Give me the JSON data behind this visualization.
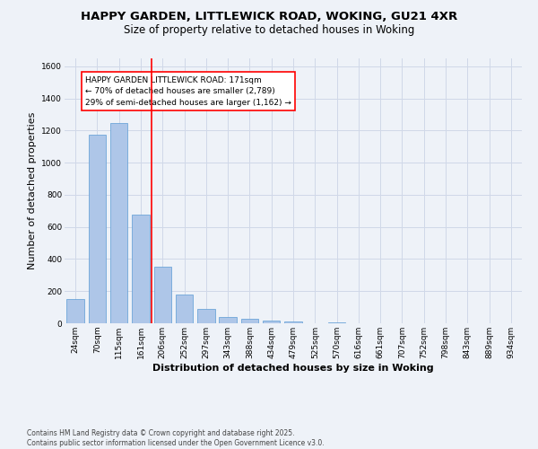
{
  "title_line1": "HAPPY GARDEN, LITTLEWICK ROAD, WOKING, GU21 4XR",
  "title_line2": "Size of property relative to detached houses in Woking",
  "xlabel": "Distribution of detached houses by size in Woking",
  "ylabel": "Number of detached properties",
  "categories": [
    "24sqm",
    "70sqm",
    "115sqm",
    "161sqm",
    "206sqm",
    "252sqm",
    "297sqm",
    "343sqm",
    "388sqm",
    "434sqm",
    "479sqm",
    "525sqm",
    "570sqm",
    "616sqm",
    "661sqm",
    "707sqm",
    "752sqm",
    "798sqm",
    "843sqm",
    "889sqm",
    "934sqm"
  ],
  "values": [
    152,
    1175,
    1250,
    675,
    350,
    180,
    90,
    40,
    30,
    15,
    12,
    0,
    8,
    0,
    0,
    0,
    0,
    0,
    0,
    0,
    0
  ],
  "bar_color": "#aec6e8",
  "bar_edgecolor": "#5b9bd5",
  "red_line_x": 3.5,
  "annotation_text": "HAPPY GARDEN LITTLEWICK ROAD: 171sqm\n← 70% of detached houses are smaller (2,789)\n29% of semi-detached houses are larger (1,162) →",
  "annotation_box_color": "white",
  "annotation_edge_color": "red",
  "ylim": [
    0,
    1650
  ],
  "yticks": [
    0,
    200,
    400,
    600,
    800,
    1000,
    1200,
    1400,
    1600
  ],
  "grid_color": "#d0d8e8",
  "background_color": "#eef2f8",
  "footnote": "Contains HM Land Registry data © Crown copyright and database right 2025.\nContains public sector information licensed under the Open Government Licence v3.0.",
  "title_fontsize": 9.5,
  "subtitle_fontsize": 8.5,
  "axis_label_fontsize": 8,
  "tick_fontsize": 6.5,
  "annotation_fontsize": 6.5,
  "footnote_fontsize": 5.5
}
